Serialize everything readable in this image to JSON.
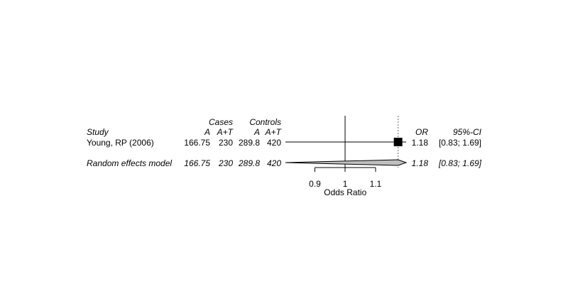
{
  "headers": {
    "cases": "Cases",
    "controls": "Controls",
    "study": "Study",
    "cases_a": "A",
    "cases_at": "A+T",
    "controls_a": "A",
    "controls_at": "A+T",
    "or": "OR",
    "ci": "95%-CI"
  },
  "chart_data": {
    "type": "forest",
    "xlabel": "Odds Ratio",
    "xscale": "log",
    "xlim": [
      0.83,
      1.21
    ],
    "xticks": [
      {
        "value": 0.91,
        "label": "0.9"
      },
      {
        "value": 1.0,
        "label": "1"
      },
      {
        "value": 1.1,
        "label": "1.1"
      }
    ],
    "null_value": 1.0,
    "studies": [
      {
        "label": "Young, RP (2006)",
        "cases_a": "166.75",
        "cases_at": "230",
        "controls_a": "289.8",
        "controls_at": "420",
        "or": 1.18,
        "ci_low": 0.83,
        "ci_high": 1.69,
        "or_text": "1.18",
        "ci_text": "[0.83; 1.69]"
      }
    ],
    "pooled": {
      "label": "Random effects model",
      "cases_a": "166.75",
      "cases_at": "230",
      "controls_a": "289.8",
      "controls_at": "420",
      "or": 1.18,
      "ci_low": 0.83,
      "ci_high": 1.69,
      "or_text": "1.18",
      "ci_text": "[0.83; 1.69]"
    }
  }
}
